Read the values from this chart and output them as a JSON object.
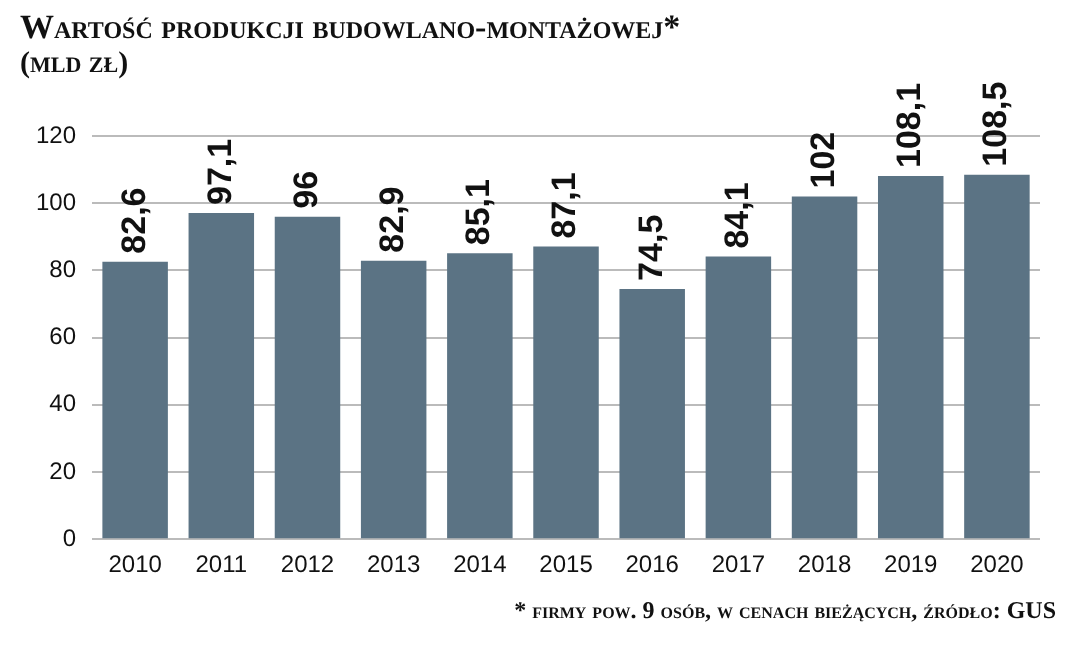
{
  "chart_data": {
    "type": "bar",
    "title": "Wartość produkcji budowlano-montażowej*",
    "subtitle": "(mld zł)",
    "categories": [
      "2010",
      "2011",
      "2012",
      "2013",
      "2014",
      "2015",
      "2016",
      "2017",
      "2018",
      "2019",
      "2020"
    ],
    "values": [
      82.6,
      97.1,
      96,
      82.9,
      85.1,
      87.1,
      74.5,
      84.1,
      102,
      108.1,
      108.5
    ],
    "value_labels": [
      "82,6",
      "97,1",
      "96",
      "82,9",
      "85,1",
      "87,1",
      "74,5",
      "84,1",
      "102",
      "108,1",
      "108,5"
    ],
    "color": "#5b7384",
    "ylim": [
      0,
      120
    ],
    "yticks": [
      0,
      20,
      40,
      60,
      80,
      100,
      120
    ],
    "grid": "y",
    "legend": false,
    "annotations": [
      "* firmy pow. 9 osób, w cenach bieżących, źródło: GUS"
    ]
  }
}
